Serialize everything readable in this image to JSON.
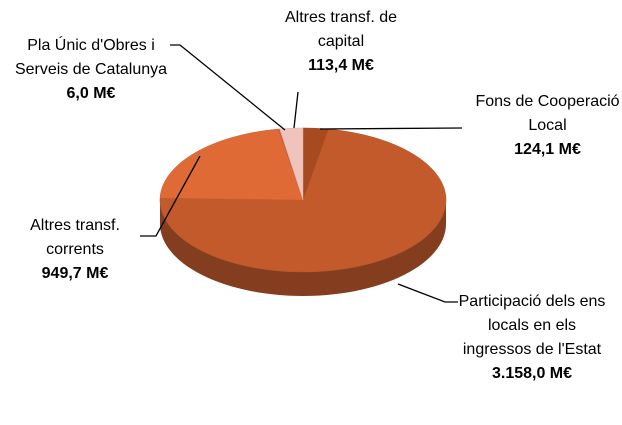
{
  "chart_data": {
    "type": "pie",
    "categories": [
      "Fons de Cooperació Local",
      "Participació dels ens locals en els ingressos de l'Estat",
      "Altres transf. corrents",
      "Pla Únic d'Obres i Serveis de Catalunya",
      "Altres transf. de capital"
    ],
    "values": [
      124.1,
      3158.0,
      949.7,
      6.0,
      113.4
    ],
    "value_labels": [
      "124,1 M€",
      "3.158,0 M€",
      "949,7 M€",
      "6,0 M€",
      "113,4 M€"
    ],
    "colors": [
      "#a84a20",
      "#c25a2c",
      "#e06a35",
      "#c9674d",
      "#f0c4bd"
    ]
  }
}
